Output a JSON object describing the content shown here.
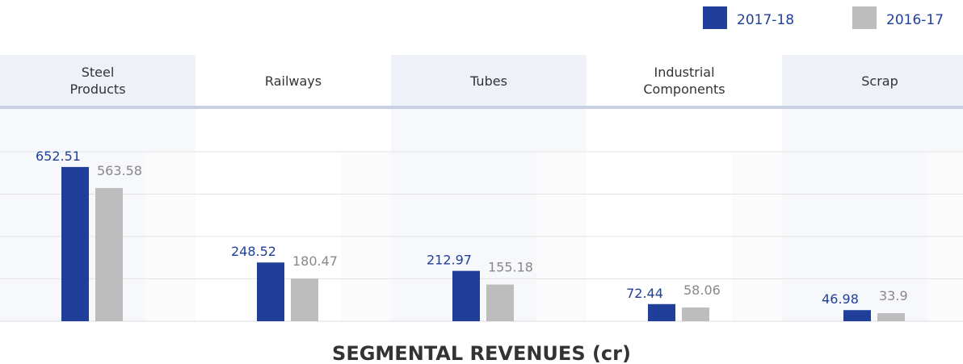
{
  "chart_data": {
    "type": "bar",
    "title": "SEGMENTAL REVENUES (cr)",
    "categories": [
      "Steel\nProducts",
      "Railways",
      "Tubes",
      "Industrial\nComponents",
      "Scrap"
    ],
    "series": [
      {
        "name": "2017-18",
        "color": "#1f3f9a",
        "values": [
          652.51,
          248.52,
          212.97,
          72.44,
          46.98
        ]
      },
      {
        "name": "2016-17",
        "color": "#bdbdbd",
        "values": [
          563.58,
          180.47,
          155.18,
          58.06,
          33.9
        ]
      }
    ],
    "ylim": [
      0,
      717
    ]
  }
}
